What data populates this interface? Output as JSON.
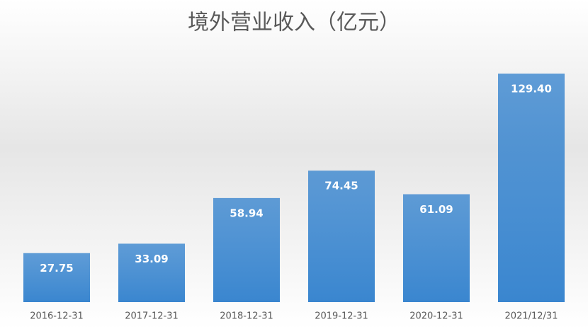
{
  "chart_data": {
    "type": "bar",
    "title": "境外营业收入（亿元）",
    "categories": [
      "2016-12-31",
      "2017-12-31",
      "2018-12-31",
      "2019-12-31",
      "2020-12-31",
      "2021/12/31"
    ],
    "values": [
      27.75,
      33.09,
      58.94,
      74.45,
      61.09,
      129.4
    ],
    "value_labels": [
      "27.75",
      "33.09",
      "58.94",
      "74.45",
      "61.09",
      "129.40"
    ],
    "color": "#3a86cf"
  }
}
